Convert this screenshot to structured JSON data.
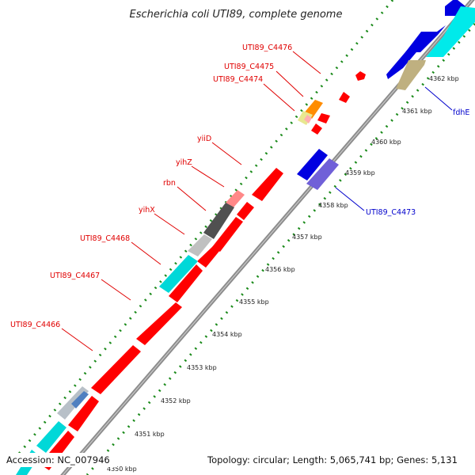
{
  "title": "Escherichia coli UTI89, complete genome",
  "footer": {
    "accession": "Accession: NC_007946",
    "summary": "Topology: circular; Length: 5,065,741 bp; Genes: 5,131"
  },
  "scale_labels": [
    "4350 kbp",
    "4351 kbp",
    "4352 kbp",
    "4353 kbp",
    "4354 kbp",
    "4355 kbp",
    "4356 kbp",
    "4357 kbp",
    "4358 kbp",
    "4359 kbp",
    "4360 kbp",
    "4361 kbp",
    "4362 kbp"
  ],
  "gene_labels_red": [
    "UTI89_C4476",
    "UTI89_C4475",
    "UTI89_C4474",
    "yiiD",
    "yihZ",
    "rbn",
    "yihX",
    "UTI89_C4468",
    "UTI89_C4467",
    "UTI89_C4466"
  ],
  "gene_labels_blue": [
    "fdhE",
    "UTI89_C4473"
  ],
  "colors": {
    "red_genes": "#ff0000",
    "blue_genes": "#0000e0",
    "cyan_genes": "#00e0e0",
    "label_red": "#e00000",
    "label_blue": "#0000cc",
    "tick_green": "#1a8a1a",
    "backbone": "#909090"
  }
}
